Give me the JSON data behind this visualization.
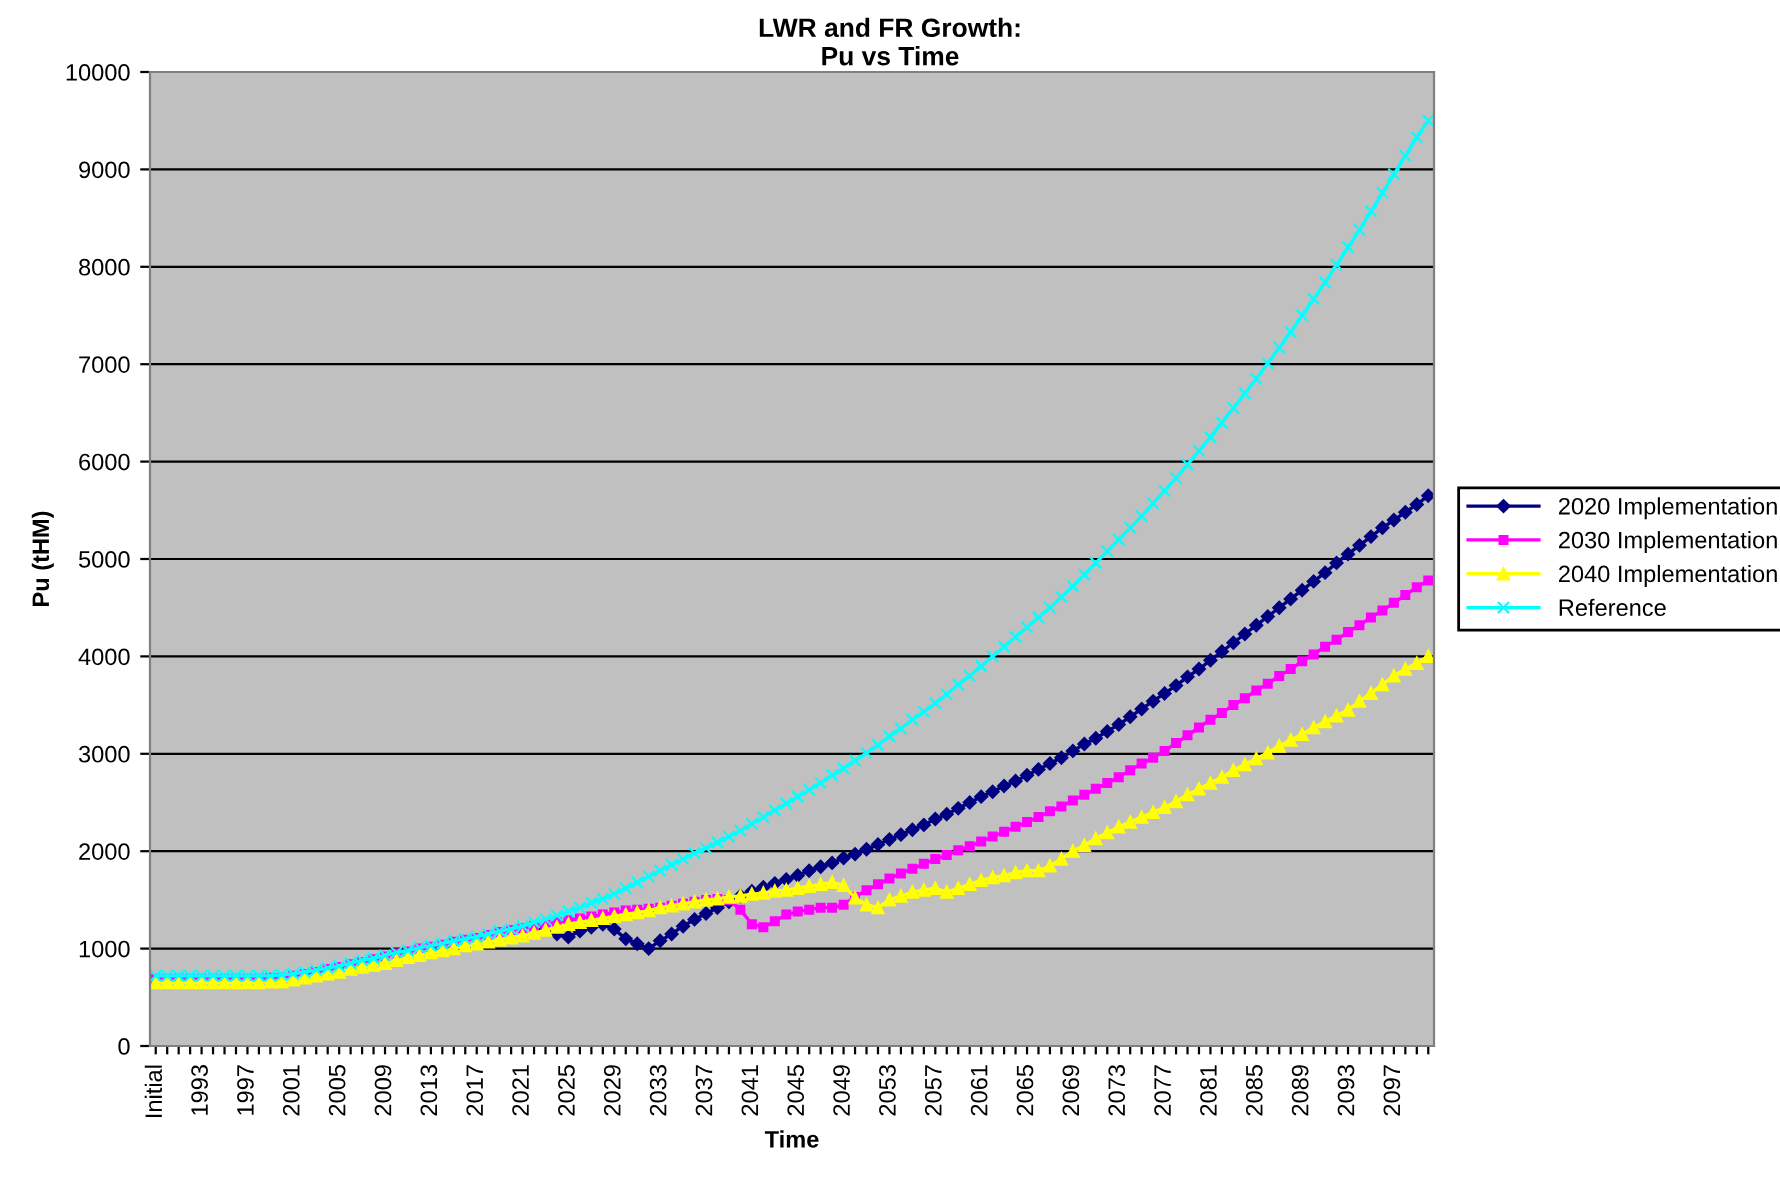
{
  "chart_data": {
    "type": "line",
    "title": "LWR and FR Growth:\nPu vs Time",
    "xlabel": "Time",
    "ylabel": "Pu (tHM)",
    "categories": [
      "Initial",
      null,
      null,
      null,
      "1993",
      null,
      null,
      null,
      "1997",
      null,
      null,
      null,
      "2001",
      null,
      null,
      null,
      "2005",
      null,
      null,
      null,
      "2009",
      null,
      null,
      null,
      "2013",
      null,
      null,
      null,
      "2017",
      null,
      null,
      null,
      "2021",
      null,
      null,
      null,
      "2025",
      null,
      null,
      null,
      "2029",
      null,
      null,
      null,
      "2033",
      null,
      null,
      null,
      "2037",
      null,
      null,
      null,
      "2041",
      null,
      null,
      null,
      "2045",
      null,
      null,
      null,
      "2049",
      null,
      null,
      null,
      "2053",
      null,
      null,
      null,
      "2057",
      null,
      null,
      null,
      "2061",
      null,
      null,
      null,
      "2065",
      null,
      null,
      null,
      "2069",
      null,
      null,
      null,
      "2073",
      null,
      null,
      null,
      "2077",
      null,
      null,
      null,
      "2081",
      null,
      null,
      null,
      "2085",
      null,
      null,
      null,
      "2089",
      null,
      null,
      null,
      "2093",
      null,
      null,
      null,
      "2097",
      null,
      null,
      null
    ],
    "series": [
      {
        "name": "2020 Implementation",
        "color": "#000080",
        "marker": "diamond",
        "values": [
          null,
          null,
          null,
          null,
          null,
          null,
          null,
          null,
          null,
          null,
          null,
          null,
          null,
          null,
          null,
          null,
          null,
          null,
          null,
          null,
          null,
          null,
          null,
          null,
          null,
          null,
          null,
          null,
          null,
          null,
          null,
          null,
          null,
          null,
          1200,
          1150,
          1120,
          1180,
          1220,
          1250,
          1200,
          1100,
          1050,
          1000,
          1080,
          1150,
          1230,
          1300,
          1360,
          1420,
          1480,
          1540,
          1590,
          1630,
          1670,
          1710,
          1750,
          1800,
          1840,
          1880,
          1930,
          1970,
          2020,
          2070,
          2120,
          2170,
          2220,
          2270,
          2330,
          2380,
          2440,
          2500,
          2560,
          2610,
          2670,
          2720,
          2780,
          2840,
          2900,
          2960,
          3030,
          3100,
          3160,
          3230,
          3300,
          3380,
          3460,
          3540,
          3620,
          3700,
          3790,
          3870,
          3960,
          4050,
          4140,
          4230,
          4320,
          4410,
          4500,
          4590,
          4680,
          4770,
          4860,
          4960,
          5050,
          5140,
          5230,
          5320,
          5400,
          5480,
          5560,
          5650
        ]
      },
      {
        "name": "2030 Implementation",
        "color": "#ff00ff",
        "marker": "square",
        "values": [
          690,
          690,
          690,
          690,
          690,
          690,
          690,
          690,
          690,
          690,
          700,
          700,
          720,
          740,
          760,
          790,
          810,
          840,
          860,
          890,
          920,
          950,
          970,
          1000,
          1020,
          1040,
          1070,
          1090,
          1110,
          1140,
          1170,
          1190,
          1210,
          1230,
          1250,
          1270,
          1290,
          1310,
          1330,
          1350,
          1370,
          1390,
          1400,
          1410,
          1420,
          1440,
          1460,
          1480,
          1500,
          1510,
          1500,
          1400,
          1250,
          1220,
          1280,
          1350,
          1380,
          1400,
          1420,
          1420,
          1450,
          1530,
          1600,
          1660,
          1720,
          1770,
          1820,
          1870,
          1920,
          1960,
          2010,
          2050,
          2100,
          2150,
          2200,
          2250,
          2300,
          2350,
          2410,
          2460,
          2520,
          2580,
          2640,
          2700,
          2760,
          2830,
          2900,
          2960,
          3030,
          3110,
          3190,
          3270,
          3350,
          3420,
          3500,
          3570,
          3650,
          3720,
          3800,
          3870,
          3950,
          4020,
          4100,
          4170,
          4250,
          4320,
          4400,
          4470,
          4550,
          4630,
          4710,
          4780
        ]
      },
      {
        "name": "2040 Implementation",
        "color": "#ffff00",
        "marker": "triangle",
        "values": [
          650,
          650,
          650,
          650,
          650,
          650,
          650,
          650,
          650,
          650,
          660,
          660,
          680,
          700,
          720,
          740,
          760,
          790,
          810,
          830,
          850,
          880,
          910,
          930,
          960,
          980,
          1000,
          1030,
          1050,
          1070,
          1090,
          1110,
          1130,
          1160,
          1190,
          1220,
          1250,
          1270,
          1290,
          1310,
          1330,
          1350,
          1370,
          1390,
          1420,
          1440,
          1460,
          1480,
          1500,
          1510,
          1530,
          1540,
          1560,
          1570,
          1590,
          1600,
          1620,
          1640,
          1660,
          1680,
          1650,
          1520,
          1450,
          1420,
          1500,
          1540,
          1580,
          1600,
          1620,
          1580,
          1620,
          1660,
          1700,
          1730,
          1750,
          1780,
          1800,
          1800,
          1850,
          1920,
          2000,
          2060,
          2130,
          2190,
          2250,
          2300,
          2350,
          2400,
          2450,
          2510,
          2580,
          2640,
          2700,
          2760,
          2830,
          2890,
          2950,
          3010,
          3080,
          3140,
          3200,
          3270,
          3330,
          3390,
          3450,
          3540,
          3620,
          3710,
          3800,
          3870,
          3930,
          4000
        ]
      },
      {
        "name": "Reference",
        "color": "#00ffff",
        "marker": "cross",
        "values": [
          720,
          720,
          720,
          720,
          720,
          720,
          720,
          720,
          720,
          720,
          720,
          730,
          740,
          760,
          780,
          800,
          820,
          850,
          880,
          900,
          930,
          960,
          980,
          1010,
          1030,
          1050,
          1080,
          1100,
          1120,
          1150,
          1180,
          1200,
          1230,
          1270,
          1300,
          1340,
          1380,
          1420,
          1470,
          1510,
          1560,
          1620,
          1680,
          1740,
          1800,
          1860,
          1920,
          1980,
          2030,
          2090,
          2150,
          2210,
          2280,
          2350,
          2420,
          2490,
          2560,
          2630,
          2700,
          2780,
          2850,
          2930,
          3010,
          3090,
          3180,
          3260,
          3350,
          3430,
          3520,
          3610,
          3710,
          3800,
          3900,
          4000,
          4100,
          4200,
          4300,
          4400,
          4500,
          4610,
          4720,
          4840,
          4960,
          5080,
          5200,
          5320,
          5440,
          5570,
          5700,
          5830,
          5970,
          6110,
          6250,
          6400,
          6550,
          6700,
          6850,
          7010,
          7170,
          7330,
          7500,
          7670,
          7840,
          8020,
          8200,
          8380,
          8570,
          8760,
          8950,
          9140,
          9330,
          9500
        ]
      }
    ],
    "ylim": [
      0,
      10000
    ],
    "yticks": [
      0,
      1000,
      2000,
      3000,
      4000,
      5000,
      6000,
      7000,
      8000,
      9000,
      10000
    ],
    "grid": "y",
    "legend": "right",
    "line_style": "solid"
  }
}
